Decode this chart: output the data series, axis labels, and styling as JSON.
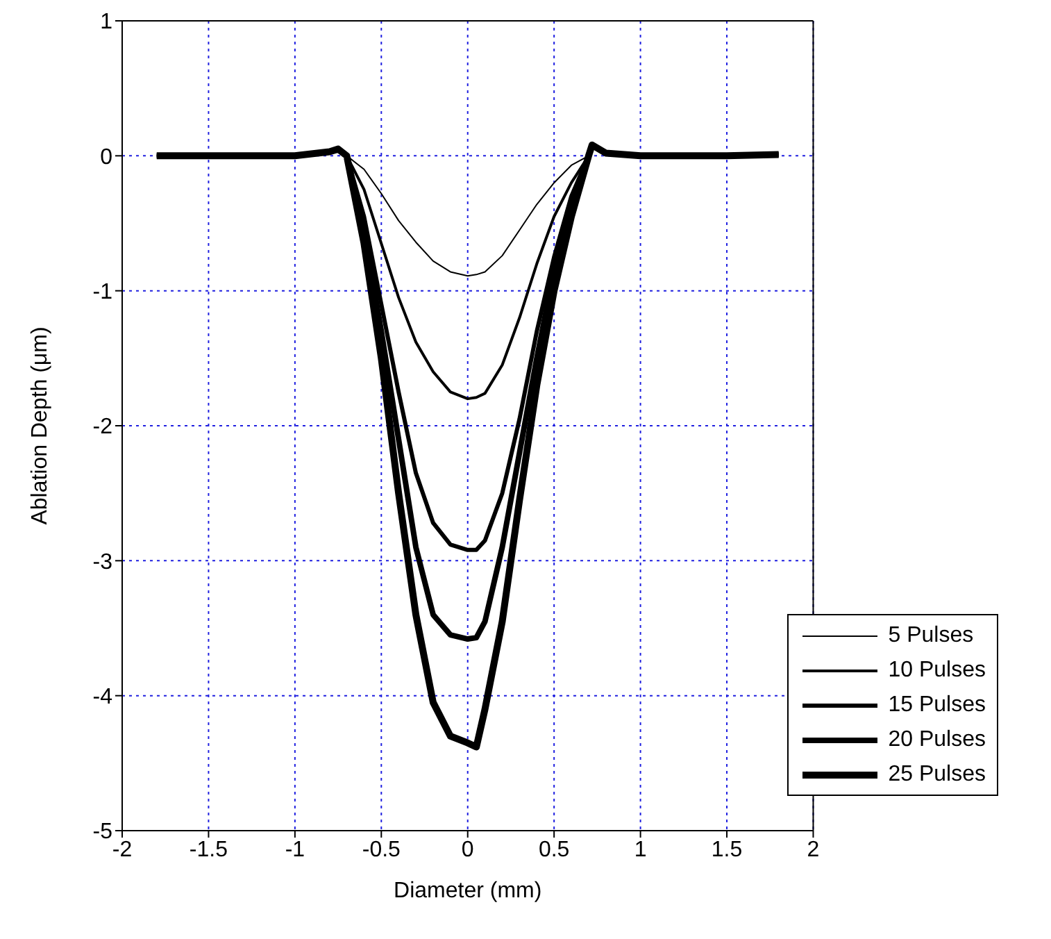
{
  "chart_data": {
    "type": "line",
    "xlabel": "Diameter (mm)",
    "ylabel": "Ablation Depth (μm)",
    "x": [
      -1.8,
      -1.5,
      -1.0,
      -0.8,
      -0.75,
      -0.7,
      -0.6,
      -0.5,
      -0.4,
      -0.3,
      -0.2,
      -0.1,
      0,
      0.05,
      0.1,
      0.2,
      0.3,
      0.4,
      0.5,
      0.6,
      0.7,
      0.72,
      0.8,
      1.0,
      1.5,
      1.8
    ],
    "series": [
      {
        "name": "5 Pulses",
        "color": "#000000",
        "values": [
          0,
          0,
          0,
          0.03,
          0.05,
          0,
          -0.1,
          -0.28,
          -0.48,
          -0.64,
          -0.78,
          -0.86,
          -0.89,
          -0.88,
          -0.86,
          -0.74,
          -0.55,
          -0.36,
          -0.2,
          -0.07,
          0,
          0.08,
          0.02,
          0,
          0,
          0.01
        ]
      },
      {
        "name": "10 Pulses",
        "color": "#000000",
        "values": [
          0,
          0,
          0,
          0.03,
          0.05,
          0,
          -0.25,
          -0.65,
          -1.05,
          -1.38,
          -1.6,
          -1.75,
          -1.8,
          -1.79,
          -1.76,
          -1.55,
          -1.2,
          -0.8,
          -0.45,
          -0.2,
          0,
          0.08,
          0.02,
          0,
          0,
          0.01
        ]
      },
      {
        "name": "15 Pulses",
        "color": "#000000",
        "values": [
          0,
          0,
          0,
          0.03,
          0.05,
          0,
          -0.45,
          -1.1,
          -1.75,
          -2.35,
          -2.72,
          -2.88,
          -2.92,
          -2.92,
          -2.85,
          -2.5,
          -1.95,
          -1.3,
          -0.75,
          -0.3,
          0,
          0.08,
          0.02,
          0,
          0,
          0.01
        ]
      },
      {
        "name": "20 Pulses",
        "color": "#000000",
        "values": [
          0,
          0,
          0,
          0.03,
          0.05,
          0,
          -0.55,
          -1.3,
          -2.1,
          -2.9,
          -3.4,
          -3.55,
          -3.58,
          -3.57,
          -3.45,
          -2.9,
          -2.2,
          -1.5,
          -0.85,
          -0.35,
          0,
          0.08,
          0.02,
          0,
          0,
          0.01
        ]
      },
      {
        "name": "25 Pulses",
        "color": "#000000",
        "values": [
          0,
          0,
          0,
          0.03,
          0.05,
          0,
          -0.65,
          -1.5,
          -2.5,
          -3.4,
          -4.05,
          -4.3,
          -4.35,
          -4.38,
          -4.1,
          -3.45,
          -2.55,
          -1.7,
          -1.0,
          -0.45,
          0,
          0.08,
          0.02,
          0,
          0,
          0.01
        ]
      }
    ],
    "xlim": [
      -2,
      2
    ],
    "xticks": [
      -2,
      -1.5,
      -1,
      -0.5,
      0,
      0.5,
      1,
      1.5,
      2
    ],
    "ylim": [
      -5,
      1
    ],
    "yticks": [
      -5,
      -4,
      -3,
      -2,
      -1,
      0,
      1
    ],
    "grid": true,
    "legend": "bottom right",
    "marker": "none",
    "line_style": "solid"
  }
}
